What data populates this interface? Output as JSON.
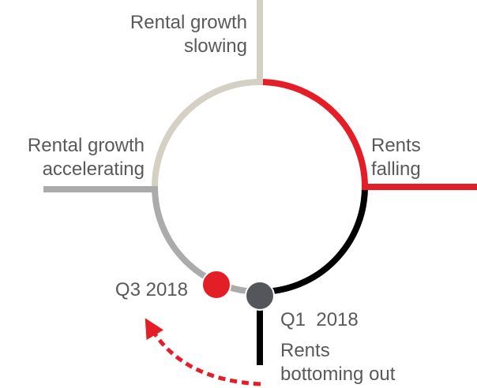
{
  "phases": [
    {
      "lines": [
        "Rental growth",
        "slowing"
      ]
    },
    {
      "lines": [
        "Rents",
        "falling"
      ]
    },
    {
      "lines": [
        "Rents",
        "bottoming out"
      ]
    },
    {
      "lines": [
        "Rental growth",
        "accelerating"
      ]
    }
  ],
  "markers": [
    {
      "label": "Q3 2018"
    },
    {
      "label": "Q1  2018"
    }
  ]
}
